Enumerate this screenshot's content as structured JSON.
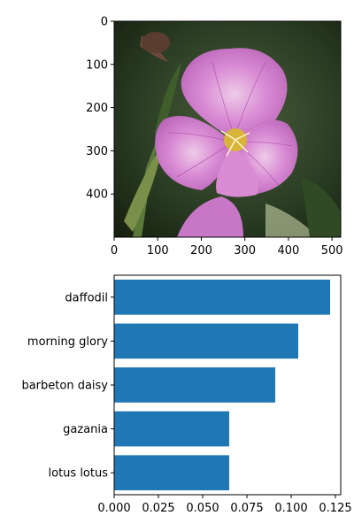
{
  "chart_data": [
    {
      "type": "image",
      "image": "pink evening primrose flower photo",
      "xlim": [
        0,
        520
      ],
      "ylim": [
        500,
        0
      ],
      "xticks": [
        "0",
        "100",
        "200",
        "300",
        "400",
        "500"
      ],
      "yticks": [
        "0",
        "100",
        "200",
        "300",
        "400"
      ],
      "colors": {
        "petal": "#d77fd1",
        "petal_dark": "#b85bb6",
        "center": "#d9b43a",
        "background": "#2a3d24"
      }
    },
    {
      "type": "bar",
      "orientation": "horizontal",
      "categories": [
        "daffodil",
        "morning glory",
        "barbeton daisy",
        "gazania",
        "lotus lotus"
      ],
      "values": [
        0.122,
        0.104,
        0.091,
        0.065,
        0.065
      ],
      "xlim": [
        0,
        0.128
      ],
      "xticks": [
        "0.000",
        "0.025",
        "0.050",
        "0.075",
        "0.100",
        "0.125"
      ],
      "bar_color": "#1f77b4"
    }
  ]
}
